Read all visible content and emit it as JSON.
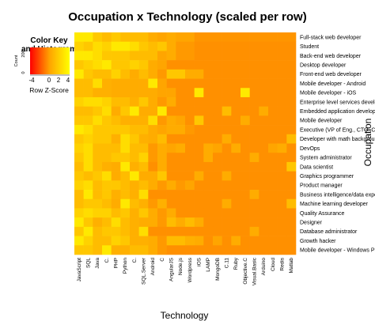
{
  "chart_data": {
    "type": "heatmap",
    "title": "Occupation x Technology (scaled per row)",
    "xlabel": "Technology",
    "ylabel": "Occupation",
    "color_scale": {
      "low": "#FF0000",
      "mid": "#FFA500",
      "high": "#FFFF00",
      "range": [
        -4,
        4
      ]
    },
    "color_key": {
      "title_line1": "Color Key",
      "title_line2": "and Histogram",
      "xlabel": "Row Z-Score",
      "ticks": [
        "-4",
        "0",
        "2",
        "4"
      ],
      "count_label": "Count",
      "count_ticks": [
        "0",
        "200"
      ]
    },
    "rows": [
      "Full-stack web developer",
      "Student",
      "Back-end web developer",
      "Desktop developer",
      "Front-end web developer",
      "Mobile developer - Android",
      "Mobile developer - iOS",
      "Enterprise level services developer",
      "Embedded application developer",
      "Mobile developer",
      "Executive (VP of Eng., CTO, CIO, etc.)",
      "Developer with math background",
      "DevOps",
      "System administrator",
      "Data scientist",
      "Graphics programmer",
      "Product manager",
      "Business intelligence/data experts",
      "Machine learning developer",
      "Quality Assurance",
      "Designer",
      "Database administrator",
      "Growth hacker",
      "Mobile developer - Windows Phone"
    ],
    "columns": [
      "JavaScript",
      "SQL",
      "Java",
      "C.",
      "PHP",
      "Python",
      "C.",
      "SQL.Server",
      "Android",
      "C",
      "AngularJS",
      "Node.js",
      "Wordpress",
      "iOS",
      "LAMP",
      "MongoDB",
      "C.11",
      "Ruby",
      "Objective.C",
      "Visual.Basic",
      "Arduino",
      "Cloud",
      "Redis",
      "Matlab"
    ],
    "values": [
      [
        3.0,
        3.0,
        1.6,
        1.0,
        1.6,
        1.0,
        1.0,
        1.0,
        0.3,
        0.0,
        0.3,
        0.0,
        0.0,
        -0.4,
        -0.4,
        -0.4,
        -0.4,
        -0.4,
        -0.4,
        -0.4,
        -0.4,
        -0.4,
        -0.4,
        -0.4
      ],
      [
        2.0,
        1.5,
        2.5,
        2.0,
        3.0,
        3.0,
        2.5,
        1.5,
        1.0,
        1.5,
        0.3,
        -0.3,
        -0.3,
        -0.5,
        -0.5,
        -0.5,
        -0.5,
        -0.5,
        -0.5,
        -0.5,
        -0.5,
        -0.5,
        -0.5,
        -0.5
      ],
      [
        3.0,
        3.0,
        2.5,
        1.5,
        1.5,
        1.5,
        1.0,
        1.0,
        1.0,
        0.0,
        0.3,
        -0.3,
        -0.3,
        -0.5,
        -0.5,
        -0.5,
        -0.5,
        -0.5,
        -0.5,
        -0.5,
        -0.5,
        -0.5,
        -0.5,
        -0.5
      ],
      [
        1.5,
        2.0,
        2.5,
        3.0,
        1.5,
        1.5,
        2.0,
        1.5,
        0.3,
        0.0,
        -0.5,
        -0.5,
        -0.5,
        -0.5,
        -0.5,
        -0.5,
        -0.5,
        -0.5,
        -0.5,
        -0.5,
        -0.5,
        -0.5,
        -0.5,
        -0.5
      ],
      [
        3.0,
        1.5,
        1.0,
        1.0,
        2.0,
        1.0,
        0.3,
        1.0,
        0.3,
        -0.3,
        1.5,
        1.5,
        0.3,
        0.3,
        -0.5,
        -0.5,
        -0.5,
        -0.5,
        -0.5,
        -0.5,
        -0.5,
        -0.5,
        -0.5,
        -0.5
      ],
      [
        1.0,
        1.0,
        2.5,
        0.5,
        0.3,
        0.3,
        0.3,
        0.3,
        3.0,
        0.0,
        -0.5,
        -0.5,
        -0.5,
        -0.5,
        -0.5,
        -0.5,
        -0.5,
        -0.5,
        -0.5,
        -0.5,
        -0.5,
        -0.5,
        -0.5,
        -0.5
      ],
      [
        1.0,
        1.0,
        0.5,
        0.5,
        0.3,
        0.3,
        0.3,
        0.3,
        0.3,
        0.0,
        0.0,
        -0.5,
        -0.5,
        3.0,
        -0.5,
        -0.5,
        -0.5,
        -0.5,
        3.0,
        -0.5,
        -0.5,
        -0.5,
        -0.5,
        -0.5
      ],
      [
        2.0,
        2.5,
        2.5,
        2.0,
        1.0,
        1.0,
        0.5,
        1.5,
        0.3,
        -0.3,
        0.3,
        -0.5,
        -0.5,
        -0.5,
        -0.5,
        -0.5,
        -0.5,
        -0.5,
        -0.5,
        -0.5,
        -0.5,
        -0.5,
        -0.5,
        -0.5
      ],
      [
        1.0,
        1.0,
        1.5,
        2.5,
        0.3,
        1.5,
        3.0,
        0.3,
        0.3,
        3.0,
        -0.5,
        -0.5,
        -0.5,
        -0.5,
        -0.5,
        -0.5,
        1.0,
        -0.5,
        -0.5,
        -0.5,
        0.3,
        -0.5,
        -0.5,
        -0.5
      ],
      [
        1.5,
        1.5,
        2.5,
        1.5,
        1.0,
        0.5,
        0.5,
        0.5,
        2.5,
        -0.3,
        0.3,
        0.0,
        -0.5,
        1.5,
        -0.5,
        -0.5,
        -0.5,
        -0.5,
        0.3,
        -0.5,
        -0.5,
        -0.5,
        -0.5,
        -0.5
      ],
      [
        3.0,
        2.5,
        1.5,
        1.5,
        1.5,
        1.5,
        1.0,
        1.0,
        0.3,
        0.0,
        0.3,
        0.3,
        -0.3,
        -0.5,
        -0.5,
        -0.5,
        -0.5,
        -0.5,
        -0.5,
        -0.5,
        -0.5,
        -0.5,
        -0.5,
        -0.5
      ],
      [
        1.5,
        2.0,
        1.5,
        1.5,
        0.5,
        2.5,
        1.5,
        0.5,
        0.3,
        1.0,
        -0.5,
        -0.5,
        -0.5,
        -0.5,
        -0.5,
        -0.5,
        0.3,
        -0.5,
        -0.5,
        -0.5,
        -0.5,
        -0.5,
        -0.5,
        1.0
      ],
      [
        2.0,
        2.5,
        1.0,
        1.0,
        1.0,
        2.5,
        1.0,
        1.0,
        -0.3,
        0.3,
        0.0,
        0.3,
        -0.5,
        -0.5,
        0.3,
        0.0,
        -0.5,
        0.3,
        -0.5,
        -0.5,
        -0.5,
        0.0,
        0.3,
        -0.5
      ],
      [
        1.5,
        2.5,
        1.0,
        1.0,
        1.5,
        1.5,
        1.0,
        2.0,
        -0.3,
        0.3,
        -0.5,
        -0.5,
        -0.5,
        -0.5,
        0.3,
        -0.5,
        -0.5,
        -0.5,
        -0.5,
        0.3,
        -0.5,
        -0.5,
        -0.5,
        -0.5
      ],
      [
        1.0,
        2.5,
        1.0,
        0.5,
        0.3,
        3.0,
        0.5,
        1.0,
        -0.5,
        0.3,
        -0.5,
        -0.5,
        -0.5,
        -0.5,
        -0.5,
        -0.5,
        -0.5,
        -0.5,
        -0.5,
        -0.5,
        -0.5,
        -0.5,
        -0.5,
        1.5
      ],
      [
        1.5,
        1.0,
        1.5,
        2.5,
        0.3,
        1.0,
        3.0,
        0.3,
        0.3,
        1.5,
        -0.5,
        -0.5,
        -0.5,
        0.3,
        -0.5,
        -0.5,
        0.3,
        -0.5,
        -0.5,
        -0.5,
        -0.5,
        -0.5,
        -0.5,
        -0.5
      ],
      [
        2.0,
        2.5,
        1.0,
        1.5,
        1.5,
        1.0,
        0.5,
        1.0,
        0.3,
        -0.3,
        0.3,
        -0.3,
        0.0,
        -0.5,
        -0.5,
        -0.5,
        -0.5,
        -0.5,
        -0.5,
        -0.5,
        -0.5,
        -0.5,
        -0.5,
        -0.5
      ],
      [
        1.0,
        3.0,
        1.0,
        1.5,
        0.5,
        1.0,
        0.5,
        2.5,
        -0.5,
        -0.5,
        -0.5,
        -0.5,
        -0.5,
        -0.5,
        -0.5,
        -0.5,
        -0.5,
        -0.5,
        -0.5,
        0.3,
        -0.5,
        -0.5,
        -0.5,
        -0.5
      ],
      [
        1.0,
        1.5,
        1.5,
        1.0,
        0.3,
        3.0,
        1.0,
        0.5,
        -0.3,
        0.5,
        -0.5,
        -0.5,
        -0.5,
        -0.5,
        -0.5,
        -0.5,
        0.3,
        -0.5,
        -0.5,
        -0.5,
        -0.5,
        -0.5,
        -0.5,
        1.0
      ],
      [
        2.0,
        2.5,
        2.0,
        2.0,
        1.0,
        1.5,
        0.5,
        1.5,
        0.3,
        -0.3,
        0.3,
        -0.5,
        -0.5,
        -0.5,
        -0.5,
        -0.5,
        -0.5,
        -0.5,
        -0.5,
        -0.5,
        -0.5,
        -0.5,
        -0.5,
        -0.5
      ],
      [
        3.0,
        1.5,
        0.5,
        1.0,
        2.5,
        1.0,
        0.5,
        0.3,
        0.3,
        -0.3,
        1.0,
        0.3,
        1.0,
        0.3,
        -0.5,
        -0.5,
        -0.5,
        -0.5,
        -0.5,
        -0.5,
        -0.5,
        -0.5,
        -0.5,
        -0.5
      ],
      [
        1.5,
        3.0,
        1.0,
        1.5,
        1.5,
        1.0,
        0.5,
        2.5,
        -0.5,
        -0.5,
        -0.5,
        -0.5,
        -0.5,
        -0.5,
        -0.5,
        -0.5,
        -0.5,
        -0.5,
        -0.5,
        0.3,
        -0.5,
        -0.5,
        -0.5,
        -0.5
      ],
      [
        3.0,
        2.0,
        1.0,
        1.0,
        2.0,
        1.5,
        0.5,
        0.5,
        0.3,
        -0.3,
        1.0,
        1.0,
        0.5,
        0.3,
        -0.5,
        0.0,
        -0.5,
        0.3,
        -0.5,
        -0.5,
        -0.5,
        -0.5,
        -0.5,
        -0.5
      ],
      [
        1.5,
        1.5,
        1.0,
        3.0,
        0.5,
        0.5,
        1.0,
        1.0,
        0.3,
        -0.3,
        -0.5,
        -0.5,
        -0.5,
        -0.5,
        -0.5,
        -0.5,
        -0.5,
        -0.5,
        -0.5,
        -0.5,
        -0.5,
        -0.5,
        -0.5,
        -0.5
      ]
    ]
  }
}
